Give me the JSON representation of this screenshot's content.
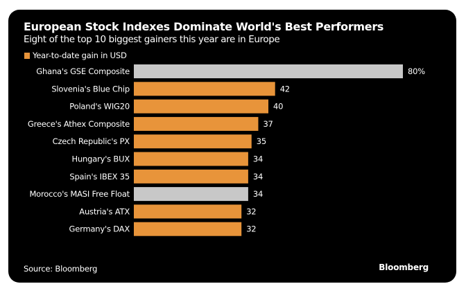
{
  "chart_data": {
    "type": "bar",
    "orientation": "horizontal",
    "title": "European Stock Indexes Dominate World's Best Performers",
    "subtitle": "Eight of the top 10 biggest gainers this year are in Europe",
    "legend": {
      "label": "Year-to-date gain in USD",
      "color": "#e8943a",
      "placement": "top-left"
    },
    "xlabel": "",
    "ylabel": "",
    "xlim": [
      0,
      80
    ],
    "grid": false,
    "value_suffix_first": "%",
    "categories": [
      "Ghana's GSE Composite",
      "Slovenia's Blue Chip",
      "Poland's WIG20",
      "Greece's Athex Composite",
      "Czech Republic's PX",
      "Hungary's BUX",
      "Spain's IBEX 35",
      "Morocco's MASI Free Float",
      "Austria's ATX",
      "Germany's DAX"
    ],
    "values": [
      80,
      42,
      40,
      37,
      35,
      34,
      34,
      34,
      32,
      32
    ],
    "value_labels": [
      "80%",
      "42",
      "40",
      "37",
      "35",
      "34",
      "34",
      "34",
      "32",
      "32"
    ],
    "highlight": [
      false,
      true,
      true,
      true,
      true,
      true,
      true,
      false,
      true,
      true
    ],
    "colors": {
      "europe": "#e8943a",
      "non_europe": "#c8c8c8"
    },
    "source": "Source: Bloomberg",
    "brand": "Bloomberg"
  }
}
